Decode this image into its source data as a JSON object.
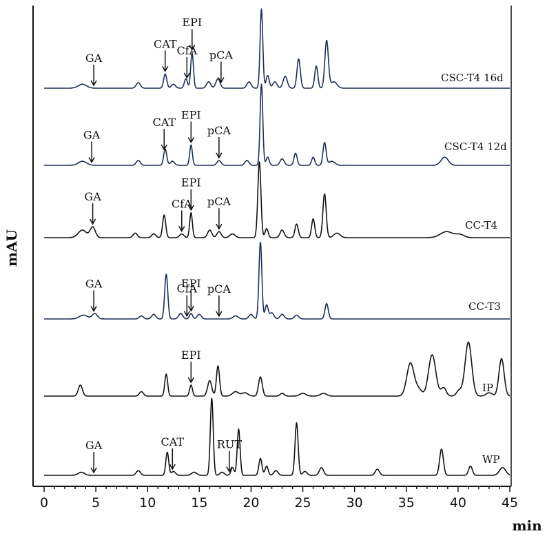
{
  "chart_data": {
    "type": "line",
    "title": "",
    "xlabel": "min",
    "ylabel": "mAU",
    "xlim": [
      0,
      45
    ],
    "x_ticks": [
      0,
      5,
      10,
      15,
      20,
      25,
      30,
      35,
      40,
      45
    ],
    "grid": false,
    "series": [
      {
        "name": "CSC-T4 16d",
        "color": "#1c2f55",
        "peaks": [
          [
            3.7,
            0.05,
            0.4
          ],
          [
            9.1,
            0.07,
            0.2
          ],
          [
            11.7,
            0.18,
            0.15
          ],
          [
            12.5,
            0.05,
            0.2
          ],
          [
            13.7,
            0.12,
            0.15
          ],
          [
            14.3,
            0.45,
            0.13
          ],
          [
            15.9,
            0.08,
            0.2
          ],
          [
            16.8,
            0.12,
            0.2
          ],
          [
            19.8,
            0.08,
            0.2
          ],
          [
            21.0,
            1.0,
            0.13
          ],
          [
            21.6,
            0.16,
            0.15
          ],
          [
            22.3,
            0.08,
            0.2
          ],
          [
            23.3,
            0.15,
            0.2
          ],
          [
            24.6,
            0.37,
            0.16
          ],
          [
            26.3,
            0.28,
            0.15
          ],
          [
            27.3,
            0.6,
            0.17
          ],
          [
            28.0,
            0.08,
            0.3
          ]
        ],
        "annotations": [
          {
            "label": "GA",
            "x": 4.8
          },
          {
            "label": "CAT",
            "x": 11.7
          },
          {
            "label": "CfA",
            "x": 13.8
          },
          {
            "label": "EPI",
            "x": 14.3
          },
          {
            "label": "pCA",
            "x": 17.1
          }
        ]
      },
      {
        "name": "CSC-T4 12d",
        "color": "#1c2f55",
        "peaks": [
          [
            3.7,
            0.05,
            0.4
          ],
          [
            9.1,
            0.06,
            0.2
          ],
          [
            11.7,
            0.2,
            0.15
          ],
          [
            12.4,
            0.05,
            0.2
          ],
          [
            14.2,
            0.25,
            0.13
          ],
          [
            16.9,
            0.06,
            0.2
          ],
          [
            19.6,
            0.06,
            0.2
          ],
          [
            21.0,
            1.0,
            0.13
          ],
          [
            21.6,
            0.1,
            0.15
          ],
          [
            23.0,
            0.08,
            0.2
          ],
          [
            24.3,
            0.15,
            0.15
          ],
          [
            26.0,
            0.1,
            0.15
          ],
          [
            27.1,
            0.28,
            0.15
          ],
          [
            27.8,
            0.05,
            0.3
          ],
          [
            38.7,
            0.1,
            0.35
          ]
        ],
        "annotations": [
          {
            "label": "GA",
            "x": 4.6
          },
          {
            "label": "CAT",
            "x": 11.6
          },
          {
            "label": "EPI",
            "x": 14.2
          },
          {
            "label": "pCA",
            "x": 16.9
          }
        ]
      },
      {
        "name": "CC-T4",
        "color": "#111111",
        "peaks": [
          [
            3.7,
            0.1,
            0.4
          ],
          [
            4.7,
            0.14,
            0.25
          ],
          [
            8.8,
            0.06,
            0.2
          ],
          [
            10.6,
            0.05,
            0.2
          ],
          [
            11.6,
            0.3,
            0.15
          ],
          [
            13.3,
            0.05,
            0.2
          ],
          [
            14.2,
            0.33,
            0.13
          ],
          [
            16.0,
            0.1,
            0.2
          ],
          [
            16.9,
            0.08,
            0.2
          ],
          [
            18.2,
            0.05,
            0.25
          ],
          [
            20.8,
            1.0,
            0.15
          ],
          [
            21.5,
            0.12,
            0.15
          ],
          [
            23.0,
            0.1,
            0.2
          ],
          [
            24.4,
            0.18,
            0.16
          ],
          [
            26.0,
            0.25,
            0.15
          ],
          [
            27.1,
            0.58,
            0.16
          ],
          [
            28.3,
            0.06,
            0.3
          ],
          [
            38.9,
            0.08,
            0.6
          ],
          [
            40.2,
            0.04,
            0.4
          ]
        ],
        "annotations": [
          {
            "label": "GA",
            "x": 4.7
          },
          {
            "label": "CfA",
            "x": 13.3
          },
          {
            "label": "EPI",
            "x": 14.2
          },
          {
            "label": "pCA",
            "x": 16.9
          }
        ]
      },
      {
        "name": "CC-T3",
        "color": "#1c2f55",
        "peaks": [
          [
            3.8,
            0.05,
            0.4
          ],
          [
            4.9,
            0.07,
            0.25
          ],
          [
            9.4,
            0.04,
            0.2
          ],
          [
            10.6,
            0.06,
            0.2
          ],
          [
            11.8,
            0.58,
            0.15
          ],
          [
            13.2,
            0.07,
            0.2
          ],
          [
            14.2,
            0.07,
            0.15
          ],
          [
            15.0,
            0.06,
            0.2
          ],
          [
            18.5,
            0.04,
            0.25
          ],
          [
            20.0,
            0.06,
            0.2
          ],
          [
            20.9,
            1.0,
            0.14
          ],
          [
            21.5,
            0.18,
            0.15
          ],
          [
            22.0,
            0.08,
            0.2
          ],
          [
            23.0,
            0.06,
            0.2
          ],
          [
            24.4,
            0.05,
            0.2
          ],
          [
            27.3,
            0.2,
            0.16
          ]
        ],
        "annotations": [
          {
            "label": "GA",
            "x": 4.8
          },
          {
            "label": "CfA",
            "x": 13.8
          },
          {
            "label": "EPI",
            "x": 14.2
          },
          {
            "label": "pCA",
            "x": 16.9
          }
        ]
      },
      {
        "name": "IP",
        "color": "#111111",
        "peaks": [
          [
            3.5,
            0.2,
            0.2
          ],
          [
            9.4,
            0.08,
            0.2
          ],
          [
            11.8,
            0.4,
            0.14
          ],
          [
            14.2,
            0.2,
            0.14
          ],
          [
            16.0,
            0.28,
            0.2
          ],
          [
            16.8,
            0.55,
            0.15
          ],
          [
            18.5,
            0.08,
            0.3
          ],
          [
            19.4,
            0.06,
            0.3
          ],
          [
            20.9,
            0.35,
            0.18
          ],
          [
            23.0,
            0.05,
            0.2
          ],
          [
            25.0,
            0.05,
            0.3
          ],
          [
            27.0,
            0.05,
            0.3
          ],
          [
            35.4,
            0.6,
            0.35
          ],
          [
            36.2,
            0.12,
            0.3
          ],
          [
            37.5,
            0.75,
            0.35
          ],
          [
            38.6,
            0.15,
            0.25
          ],
          [
            40.1,
            0.1,
            0.25
          ],
          [
            41.0,
            0.98,
            0.32
          ],
          [
            43.0,
            0.06,
            0.3
          ],
          [
            44.2,
            0.68,
            0.25
          ]
        ],
        "annotations": [
          {
            "label": "EPI",
            "x": 14.2
          }
        ]
      },
      {
        "name": "WP",
        "color": "#111111",
        "peaks": [
          [
            3.6,
            0.04,
            0.3
          ],
          [
            9.1,
            0.06,
            0.2
          ],
          [
            11.9,
            0.3,
            0.14
          ],
          [
            12.5,
            0.05,
            0.2
          ],
          [
            14.5,
            0.04,
            0.25
          ],
          [
            16.2,
            1.0,
            0.14
          ],
          [
            17.2,
            0.04,
            0.2
          ],
          [
            18.2,
            0.1,
            0.15
          ],
          [
            18.8,
            0.6,
            0.14
          ],
          [
            20.9,
            0.22,
            0.15
          ],
          [
            21.5,
            0.12,
            0.15
          ],
          [
            22.4,
            0.06,
            0.2
          ],
          [
            24.4,
            0.68,
            0.15
          ],
          [
            25.2,
            0.05,
            0.2
          ],
          [
            26.8,
            0.1,
            0.2
          ],
          [
            32.2,
            0.08,
            0.2
          ],
          [
            38.4,
            0.34,
            0.18
          ],
          [
            41.2,
            0.12,
            0.18
          ],
          [
            44.3,
            0.1,
            0.3
          ]
        ],
        "annotations": [
          {
            "label": "GA",
            "x": 4.8
          },
          {
            "label": "CAT",
            "x": 12.4
          },
          {
            "label": "RUT",
            "x": 17.9
          }
        ]
      }
    ]
  }
}
